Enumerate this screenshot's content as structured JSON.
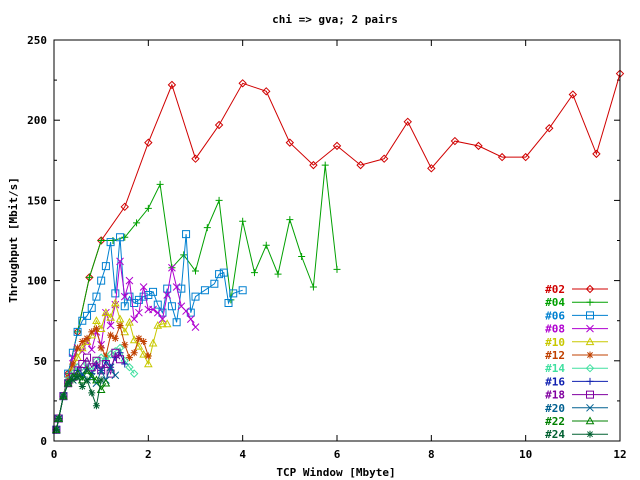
{
  "chart_data": {
    "type": "line",
    "title": "chi => gva;  2 pairs",
    "xlabel": "TCP Window [Mbyte]",
    "ylabel": "Throughput [Mbit/s]",
    "xlim": [
      0,
      12
    ],
    "ylim": [
      0,
      250
    ],
    "x_ticks": [
      0,
      2,
      4,
      6,
      8,
      10,
      12
    ],
    "y_ticks": [
      0,
      50,
      100,
      150,
      200,
      250
    ],
    "grid": false,
    "legend_position": "bottom-right",
    "series": [
      {
        "name": "#02",
        "color": "#d00000",
        "marker": "diamond",
        "x": [
          0.05,
          0.1,
          0.2,
          0.3,
          0.5,
          0.75,
          1,
          1.5,
          2,
          2.5,
          3,
          3.5,
          4,
          4.5,
          5,
          5.5,
          6,
          6.5,
          7,
          7.5,
          8,
          8.5,
          9,
          9.5,
          10,
          10.5,
          11,
          11.5,
          12
        ],
        "y": [
          7,
          14,
          28,
          42,
          68,
          102,
          125,
          146,
          186,
          222,
          176,
          197,
          223,
          218,
          186,
          172,
          184,
          172,
          176,
          199,
          170,
          187,
          184,
          177,
          177,
          195,
          216,
          179,
          229
        ]
      },
      {
        "name": "#04",
        "color": "#00a000",
        "marker": "plus",
        "x": [
          0.05,
          0.1,
          0.2,
          0.3,
          0.5,
          0.75,
          1,
          1.25,
          1.5,
          1.75,
          2,
          2.25,
          2.5,
          2.75,
          3,
          3.25,
          3.5,
          3.75,
          4,
          4.25,
          4.5,
          4.75,
          5,
          5.25,
          5.5,
          5.75,
          6
        ],
        "y": [
          7,
          14,
          28,
          42,
          68,
          102,
          125,
          125,
          127,
          136,
          145,
          160,
          108,
          116,
          106,
          133,
          150,
          88,
          137,
          105,
          122,
          104,
          138,
          115,
          96,
          172,
          107
        ]
      },
      {
        "name": "#06",
        "color": "#0080d0",
        "marker": "square",
        "x": [
          0.05,
          0.1,
          0.2,
          0.3,
          0.4,
          0.5,
          0.6,
          0.7,
          0.8,
          0.9,
          1,
          1.1,
          1.2,
          1.3,
          1.4,
          1.5,
          1.6,
          1.7,
          1.8,
          1.9,
          2,
          2.1,
          2.2,
          2.3,
          2.4,
          2.5,
          2.6,
          2.7,
          2.8,
          2.9,
          3,
          3.2,
          3.4,
          3.5,
          3.6,
          3.7,
          3.8,
          4
        ],
        "y": [
          7,
          14,
          28,
          42,
          55,
          68,
          75,
          78,
          83,
          90,
          100,
          109,
          124,
          92,
          127,
          84,
          90,
          86,
          88,
          90,
          91,
          93,
          85,
          80,
          95,
          84,
          74,
          95,
          129,
          80,
          90,
          94,
          98,
          104,
          105,
          86,
          92,
          94
        ]
      },
      {
        "name": "#08",
        "color": "#b000d0",
        "marker": "cross",
        "x": [
          0.05,
          0.1,
          0.2,
          0.3,
          0.4,
          0.5,
          0.6,
          0.7,
          0.8,
          0.9,
          1,
          1.1,
          1.2,
          1.3,
          1.4,
          1.5,
          1.6,
          1.7,
          1.8,
          1.9,
          2,
          2.1,
          2.2,
          2.3,
          2.4,
          2.5,
          2.6,
          2.7,
          2.8,
          2.9,
          3
        ],
        "y": [
          7,
          14,
          28,
          40,
          52,
          58,
          56,
          62,
          57,
          68,
          60,
          80,
          72,
          85,
          112,
          90,
          100,
          76,
          80,
          96,
          82,
          82,
          80,
          76,
          91,
          108,
          96,
          84,
          81,
          76,
          71
        ]
      },
      {
        "name": "#10",
        "color": "#c8c800",
        "marker": "triangle",
        "x": [
          0.05,
          0.1,
          0.2,
          0.3,
          0.4,
          0.5,
          0.6,
          0.7,
          0.8,
          0.9,
          1,
          1.1,
          1.2,
          1.3,
          1.4,
          1.5,
          1.6,
          1.7,
          1.8,
          1.9,
          2,
          2.1,
          2.2,
          2.3,
          2.4
        ],
        "y": [
          7,
          14,
          28,
          38,
          46,
          52,
          58,
          62,
          66,
          75,
          70,
          80,
          77,
          86,
          76,
          68,
          74,
          63,
          59,
          54,
          48,
          61,
          72,
          73,
          73
        ]
      },
      {
        "name": "#12",
        "color": "#c04000",
        "marker": "star",
        "x": [
          0.05,
          0.1,
          0.2,
          0.3,
          0.4,
          0.5,
          0.6,
          0.7,
          0.8,
          0.9,
          1,
          1.1,
          1.2,
          1.3,
          1.4,
          1.5,
          1.6,
          1.7,
          1.8,
          1.9,
          2
        ],
        "y": [
          7,
          14,
          28,
          40,
          48,
          58,
          62,
          64,
          68,
          70,
          58,
          53,
          66,
          64,
          72,
          60,
          52,
          55,
          64,
          62,
          53
        ]
      },
      {
        "name": "#14",
        "color": "#40e0a0",
        "marker": "diamond",
        "x": [
          0.05,
          0.1,
          0.2,
          0.3,
          0.4,
          0.5,
          0.6,
          0.7,
          0.8,
          0.9,
          1,
          1.1,
          1.2,
          1.3,
          1.4,
          1.5,
          1.6,
          1.7
        ],
        "y": [
          7,
          14,
          28,
          38,
          42,
          46,
          44,
          48,
          44,
          50,
          52,
          50,
          54,
          56,
          58,
          50,
          46,
          42
        ]
      },
      {
        "name": "#16",
        "color": "#1020b0",
        "marker": "plus",
        "x": [
          0.05,
          0.1,
          0.2,
          0.3,
          0.4,
          0.5,
          0.6,
          0.7,
          0.8,
          0.9,
          1,
          1.1,
          1.2,
          1.3,
          1.4,
          1.5
        ],
        "y": [
          7,
          14,
          28,
          36,
          40,
          44,
          40,
          45,
          42,
          47,
          44,
          50,
          46,
          52,
          55,
          48
        ]
      },
      {
        "name": "#18",
        "color": "#8000a0",
        "marker": "square",
        "x": [
          0.05,
          0.1,
          0.2,
          0.3,
          0.4,
          0.5,
          0.6,
          0.7,
          0.8,
          0.9,
          1,
          1.1,
          1.2,
          1.3,
          1.4
        ],
        "y": [
          7,
          14,
          28,
          36,
          40,
          44,
          48,
          52,
          46,
          50,
          44,
          48,
          42,
          55,
          51
        ]
      },
      {
        "name": "#20",
        "color": "#006090",
        "marker": "cross",
        "x": [
          0.05,
          0.1,
          0.2,
          0.3,
          0.4,
          0.5,
          0.6,
          0.7,
          0.8,
          0.9,
          1,
          1.1,
          1.2,
          1.3
        ],
        "y": [
          7,
          14,
          28,
          36,
          38,
          40,
          42,
          38,
          40,
          36,
          44,
          38,
          46,
          41
        ]
      },
      {
        "name": "#22",
        "color": "#008000",
        "marker": "triangle",
        "x": [
          0.05,
          0.1,
          0.2,
          0.3,
          0.4,
          0.5,
          0.6,
          0.7,
          0.8,
          0.9,
          1,
          1.1
        ],
        "y": [
          7,
          14,
          28,
          36,
          40,
          42,
          38,
          44,
          40,
          38,
          32,
          36
        ]
      },
      {
        "name": "#24",
        "color": "#006030",
        "marker": "star",
        "x": [
          0.05,
          0.1,
          0.2,
          0.3,
          0.4,
          0.5,
          0.6,
          0.7,
          0.8,
          0.9,
          1
        ],
        "y": [
          7,
          14,
          28,
          36,
          38,
          40,
          34,
          38,
          30,
          22,
          38
        ]
      }
    ]
  }
}
